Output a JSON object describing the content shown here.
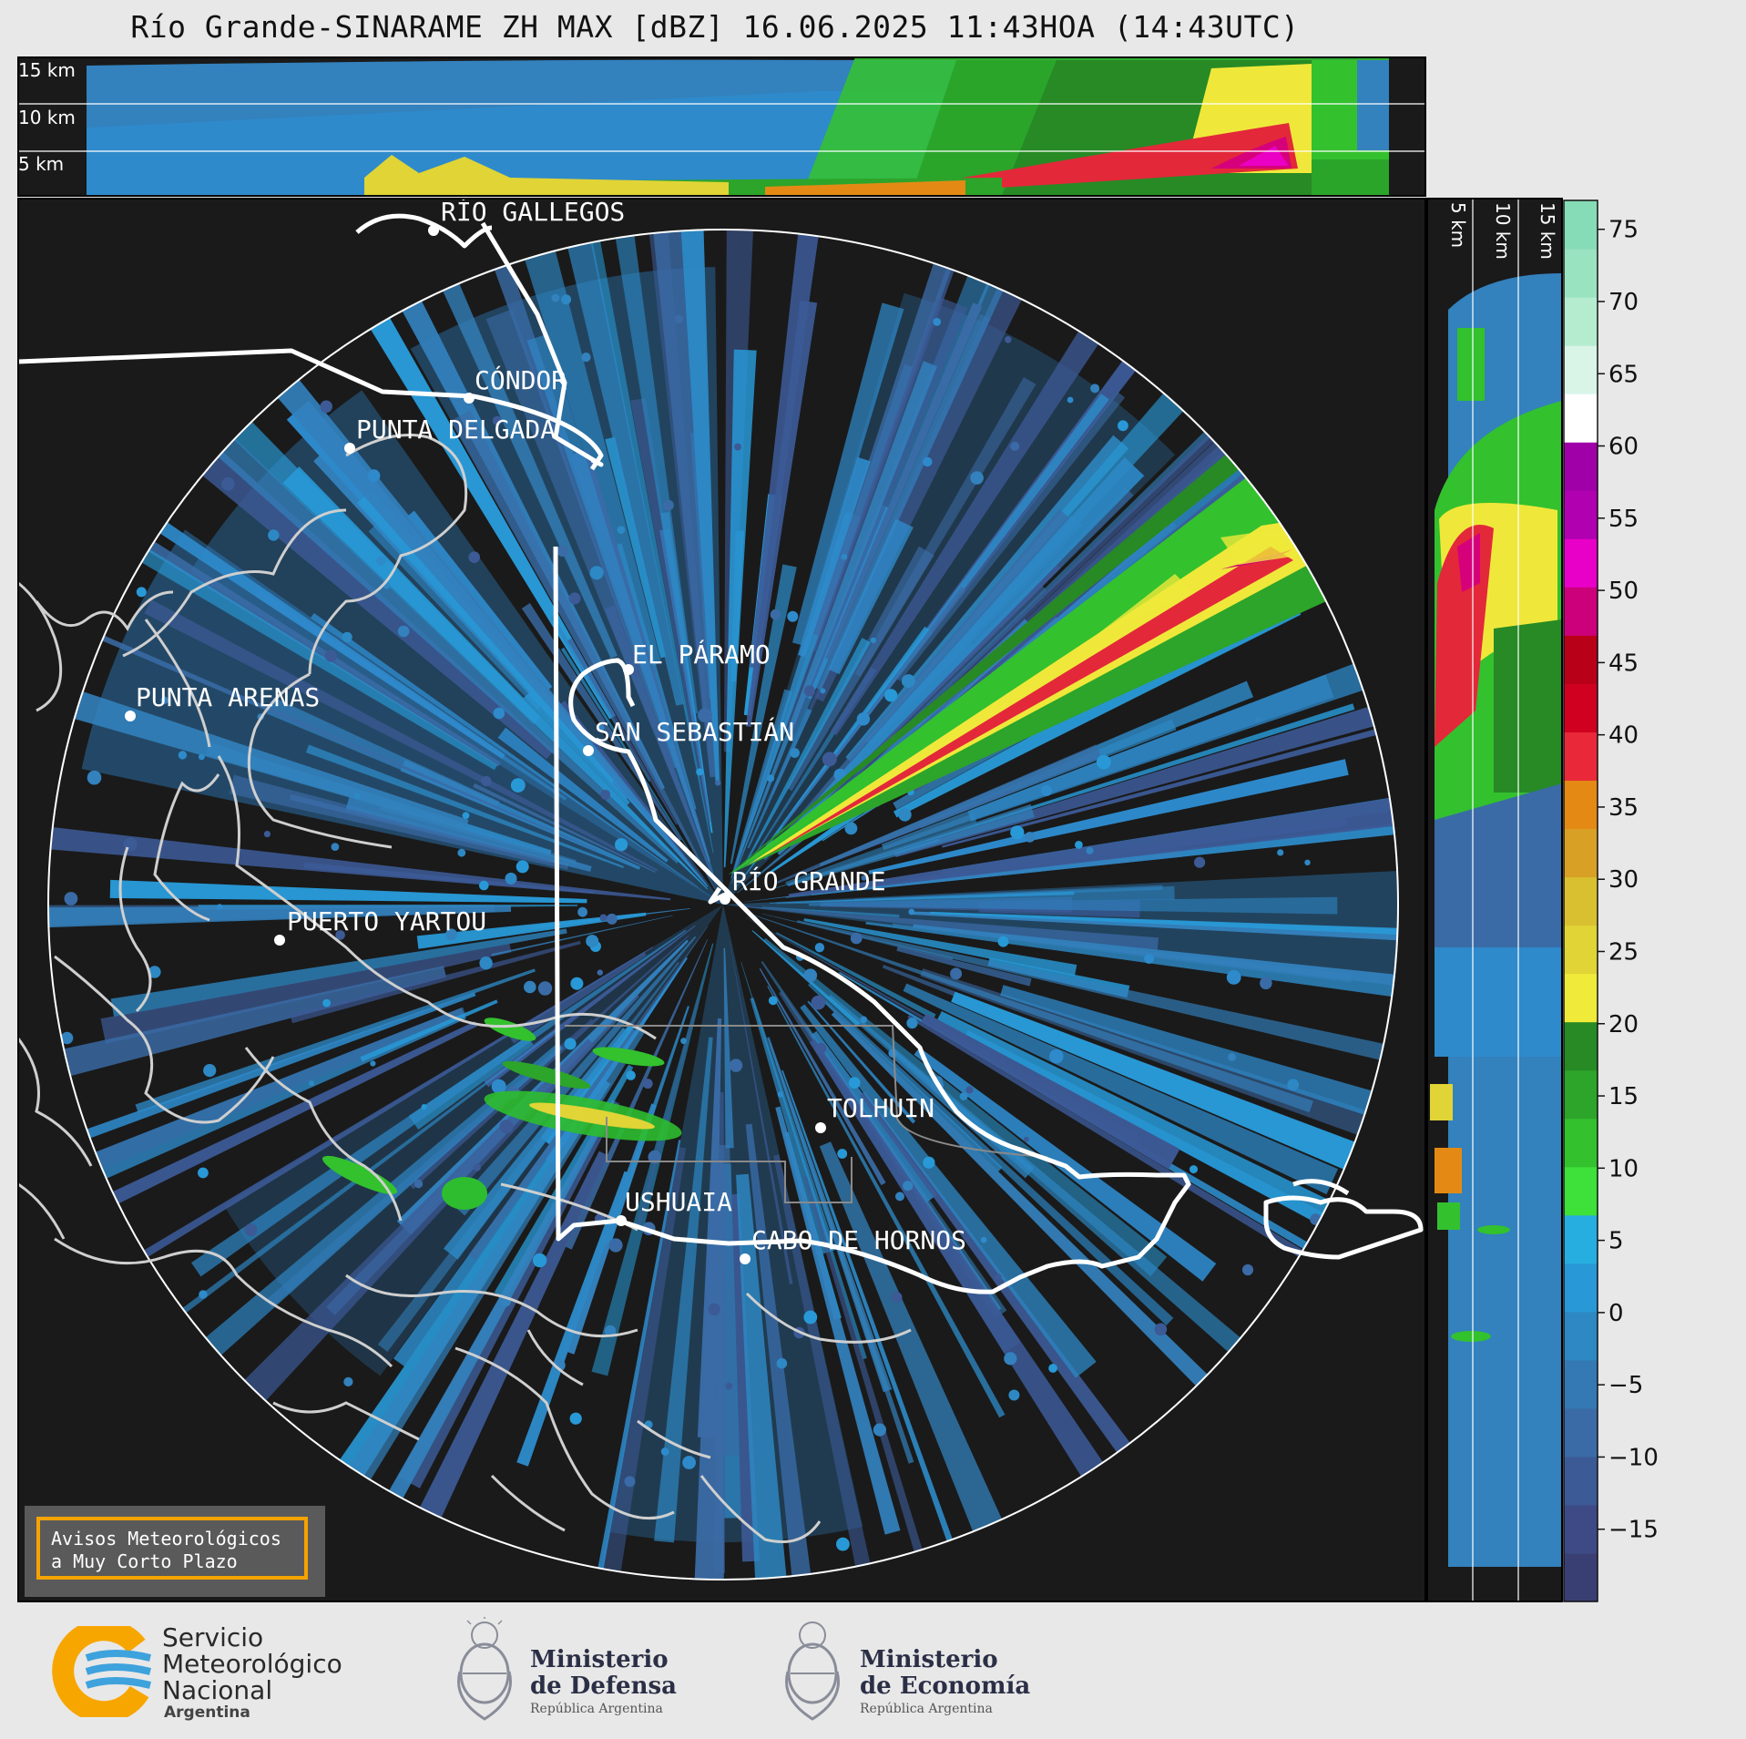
{
  "title": "Río Grande-SINARAME ZH MAX [dBZ] 16.06.2025 11:43HOA (14:43UTC)",
  "product": {
    "radar": "Río Grande-SINARAME",
    "variable": "ZH MAX",
    "units": "dBZ",
    "date": "16.06.2025",
    "local_time": "11:43HOA",
    "utc_time": "14:43UTC"
  },
  "height_labels": [
    "15 km",
    "10 km",
    "5 km"
  ],
  "colorbar": {
    "ticks": [
      "75",
      "70",
      "65",
      "60",
      "55",
      "50",
      "45",
      "40",
      "35",
      "30",
      "25",
      "20",
      "15",
      "10",
      "5",
      "0",
      "−5",
      "−10",
      "−15"
    ],
    "range": [
      -20,
      77
    ],
    "colors": [
      "#3a3f73",
      "#3d4a86",
      "#3c5a96",
      "#3a6ba6",
      "#3479b4",
      "#2d88c4",
      "#2899d6",
      "#27aee0",
      "#3ee03a",
      "#33c12e",
      "#2da42a",
      "#278a25",
      "#f0eb3a",
      "#e0d436",
      "#d9c030",
      "#d8a024",
      "#e48a14",
      "#e9283a",
      "#d00020",
      "#b80018",
      "#cc007a",
      "#e800c8",
      "#b000b0",
      "#a000a8",
      "#ffffff",
      "#d8f5e8",
      "#b5ecd0",
      "#9ae3c0",
      "#86dcb6"
    ]
  },
  "cities": [
    {
      "name": "RÍO GALLEGOS"
    },
    {
      "name": "CÓNDOR"
    },
    {
      "name": "PUNTA DELGADA"
    },
    {
      "name": "EL PÁRAMO"
    },
    {
      "name": "SAN SEBASTIÁN"
    },
    {
      "name": "PUNTA ARENAS"
    },
    {
      "name": "RÍO GRANDE"
    },
    {
      "name": "PUERTO YARTOU"
    },
    {
      "name": "TOLHUIN"
    },
    {
      "name": "USHUAIA"
    },
    {
      "name": "CABO DE HORNOS"
    }
  ],
  "notice": {
    "line1": "Avisos Meteorológicos",
    "line2": "a Muy Corto Plazo"
  },
  "footer": {
    "smn": {
      "line1": "Servicio",
      "line2": "Meteorológico",
      "line3": "Nacional",
      "country": "Argentina"
    },
    "defensa": {
      "line1": "Ministerio",
      "line2": "de Defensa",
      "sub": "República Argentina"
    },
    "economia": {
      "line1": "Ministerio",
      "line2": "de Economía",
      "sub": "República Argentina"
    }
  }
}
